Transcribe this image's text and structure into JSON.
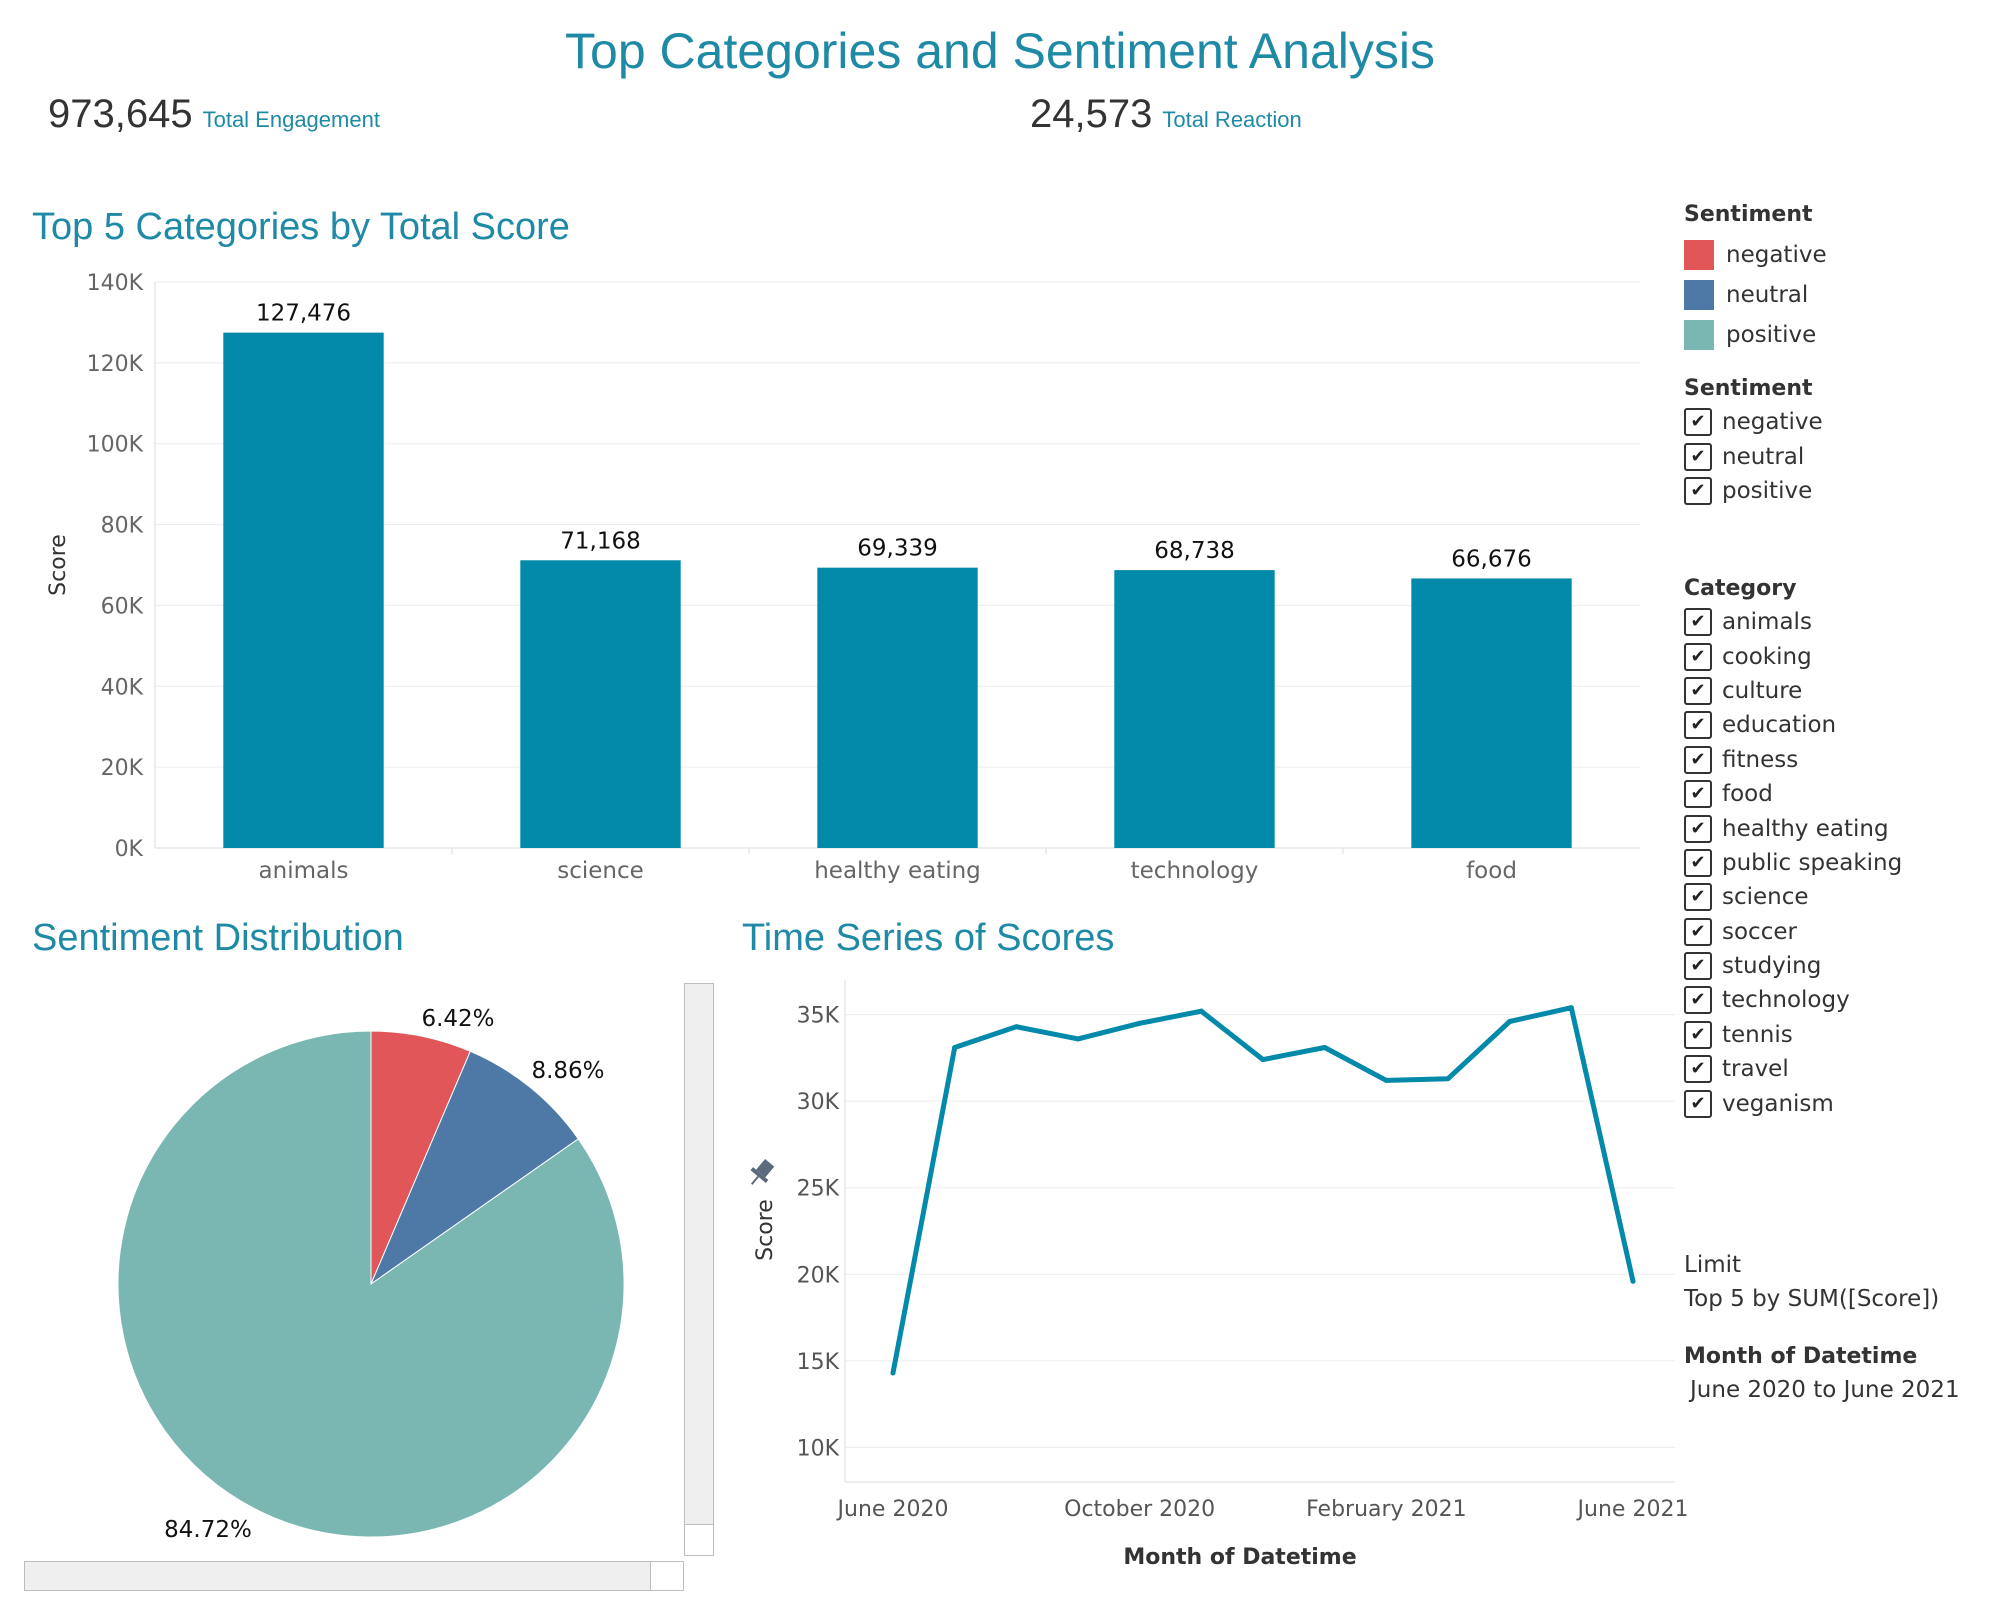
{
  "title": "Top Categories and Sentiment Analysis",
  "kpis": [
    {
      "value": "973,645",
      "label": "Total Engagement"
    },
    {
      "value": "24,573",
      "label": "Total Reaction"
    }
  ],
  "colors": {
    "accent": "#1f8aa6",
    "bar": "#0389a9",
    "negative": "#e15759",
    "neutral": "#4e79a7",
    "positive": "#7ab6b2"
  },
  "chart_data": [
    {
      "type": "bar",
      "title": "Top 5 Categories by Total Score",
      "categories": [
        "animals",
        "science",
        "healthy eating",
        "technology",
        "food"
      ],
      "values": [
        127476,
        71168,
        69339,
        68738,
        66676
      ],
      "value_labels": [
        "127,476",
        "71,168",
        "69,339",
        "68,738",
        "66,676"
      ],
      "ylabel": "Score",
      "ylim": [
        0,
        140000
      ],
      "yticks": [
        0,
        20000,
        40000,
        60000,
        80000,
        100000,
        120000,
        140000
      ],
      "ytick_labels": [
        "0K",
        "20K",
        "40K",
        "60K",
        "80K",
        "100K",
        "120K",
        "140K"
      ],
      "grid": true
    },
    {
      "type": "pie",
      "title": "Sentiment Distribution",
      "labels": [
        "negative",
        "neutral",
        "positive"
      ],
      "values": [
        6.42,
        8.86,
        84.72
      ],
      "value_labels": [
        "6.42%",
        "8.86%",
        "84.72%"
      ]
    },
    {
      "type": "line",
      "title": "Time Series of Scores",
      "xlabel": "Month of Datetime",
      "ylabel": "Score",
      "x": [
        "2020-06",
        "2020-07",
        "2020-08",
        "2020-09",
        "2020-10",
        "2020-11",
        "2020-12",
        "2021-01",
        "2021-02",
        "2021-03",
        "2021-04",
        "2021-05",
        "2021-06"
      ],
      "values": [
        14300,
        33100,
        34300,
        33600,
        34500,
        35200,
        32400,
        33100,
        31200,
        31300,
        34600,
        35400,
        19600
      ],
      "xtick_labels": [
        "June 2020",
        "October 2020",
        "February 2021",
        "June 2021"
      ],
      "ylim": [
        8000,
        37000
      ],
      "yticks": [
        10000,
        15000,
        20000,
        25000,
        30000,
        35000
      ],
      "ytick_labels": [
        "10K",
        "15K",
        "20K",
        "25K",
        "30K",
        "35K"
      ],
      "grid": true
    }
  ],
  "legend": {
    "title": "Sentiment",
    "items": [
      "negative",
      "neutral",
      "positive"
    ]
  },
  "sentiment_filter": {
    "title": "Sentiment",
    "items": [
      "negative",
      "neutral",
      "positive"
    ]
  },
  "category_filter": {
    "title": "Category",
    "items": [
      "animals",
      "cooking",
      "culture",
      "education",
      "fitness",
      "food",
      "healthy eating",
      "public speaking",
      "science",
      "soccer",
      "studying",
      "technology",
      "tennis",
      "travel",
      "veganism"
    ]
  },
  "check_glyph": "✔",
  "limit": {
    "title": "Limit",
    "value": "Top 5 by SUM([Score])"
  },
  "date_filter": {
    "title": "Month of Datetime",
    "value": "June 2020 to June 2021"
  }
}
